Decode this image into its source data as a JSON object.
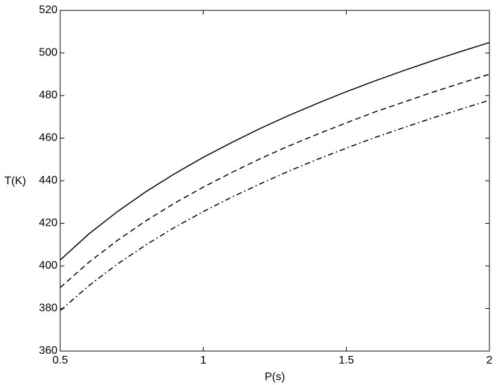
{
  "chart_data": {
    "type": "line",
    "xlabel": "P(s)",
    "ylabel": "T(K)",
    "x": [
      0.5,
      0.6,
      0.7,
      0.8,
      0.9,
      1.0,
      1.1,
      1.2,
      1.3,
      1.4,
      1.5,
      1.6,
      1.7,
      1.8,
      1.9,
      2.0
    ],
    "series": [
      {
        "color": "#000000",
        "dash": "solid",
        "values": [
          402.8,
          415.0,
          425.5,
          434.9,
          443.3,
          451.0,
          458.0,
          464.6,
          470.7,
          476.4,
          481.8,
          486.9,
          491.7,
          496.3,
          500.7,
          504.9
        ]
      },
      {
        "color": "#000000",
        "dash": "dashed",
        "values": [
          389.8,
          401.7,
          412.0,
          421.2,
          429.5,
          437.0,
          443.9,
          450.4,
          456.4,
          461.9,
          467.2,
          472.3,
          476.9,
          481.5,
          485.8,
          490.0
        ]
      },
      {
        "color": "#000000",
        "dash": "dashdot",
        "values": [
          379.0,
          390.7,
          400.9,
          409.9,
          418.1,
          425.5,
          432.3,
          438.6,
          444.6,
          450.1,
          455.3,
          460.3,
          464.9,
          469.4,
          473.6,
          477.8
        ]
      }
    ],
    "xlim": [
      0.5,
      2
    ],
    "xticks": [
      0.5,
      1,
      1.5,
      2
    ],
    "ylim": [
      360,
      520
    ],
    "yticks": [
      360,
      380,
      400,
      420,
      440,
      460,
      480,
      500,
      520
    ],
    "grid": false
  }
}
